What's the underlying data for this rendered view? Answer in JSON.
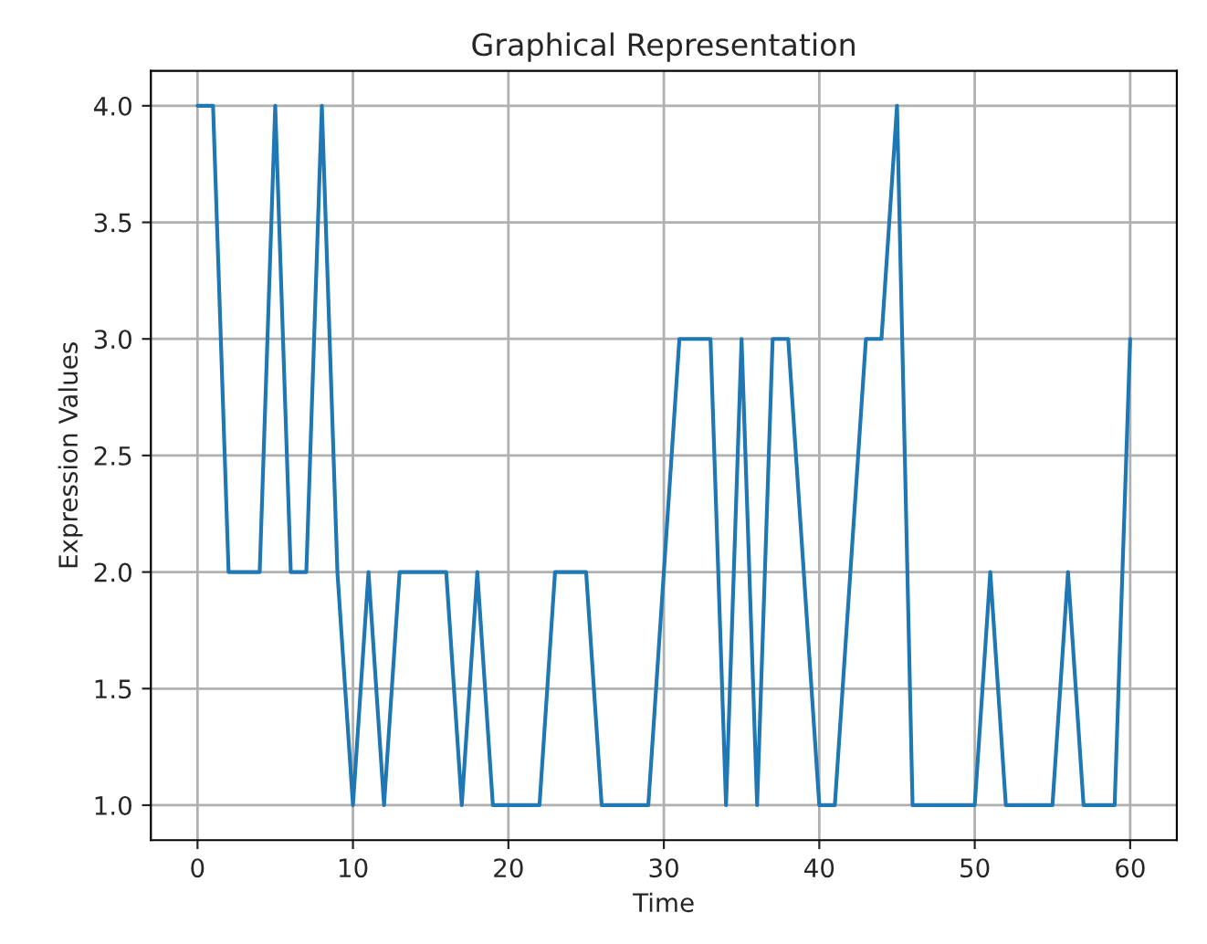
{
  "chart_data": {
    "type": "line",
    "title": "Graphical Representation",
    "xlabel": "Time",
    "ylabel": "Expression Values",
    "x": [
      0,
      1,
      2,
      3,
      4,
      5,
      6,
      7,
      8,
      9,
      10,
      11,
      12,
      13,
      14,
      15,
      16,
      17,
      18,
      19,
      20,
      21,
      22,
      23,
      24,
      25,
      26,
      27,
      28,
      29,
      30,
      31,
      32,
      33,
      34,
      35,
      36,
      37,
      38,
      39,
      40,
      41,
      42,
      43,
      44,
      45,
      46,
      47,
      48,
      49,
      50,
      51,
      52,
      53,
      54,
      55,
      56,
      57,
      58,
      59,
      60
    ],
    "series": [
      {
        "color": "#1f77b4",
        "values": [
          4,
          4,
          2,
          2,
          2,
          4,
          2,
          2,
          4,
          2,
          1,
          2,
          1,
          2,
          2,
          2,
          2,
          1,
          2,
          1,
          1,
          1,
          1,
          2,
          2,
          2,
          1,
          1,
          1,
          1,
          2,
          3,
          3,
          3,
          1,
          3,
          1,
          3,
          3,
          2,
          1,
          1,
          2,
          3,
          3,
          4,
          1,
          1,
          1,
          1,
          1,
          2,
          1,
          1,
          1,
          1,
          2,
          1,
          1,
          1,
          3
        ]
      }
    ],
    "xlim": [
      -3,
      63
    ],
    "ylim": [
      0.85,
      4.15
    ],
    "xticks": [
      0,
      10,
      20,
      30,
      40,
      50,
      60
    ],
    "yticks": [
      {
        "value": 1,
        "label": "1.0"
      },
      {
        "value": 1.5,
        "label": "1.5"
      },
      {
        "value": 2,
        "label": "2.0"
      },
      {
        "value": 2.5,
        "label": "2.5"
      },
      {
        "value": 3,
        "label": "3.0"
      },
      {
        "value": 3.5,
        "label": "3.5"
      },
      {
        "value": 4,
        "label": "4.0"
      }
    ],
    "grid": true
  }
}
